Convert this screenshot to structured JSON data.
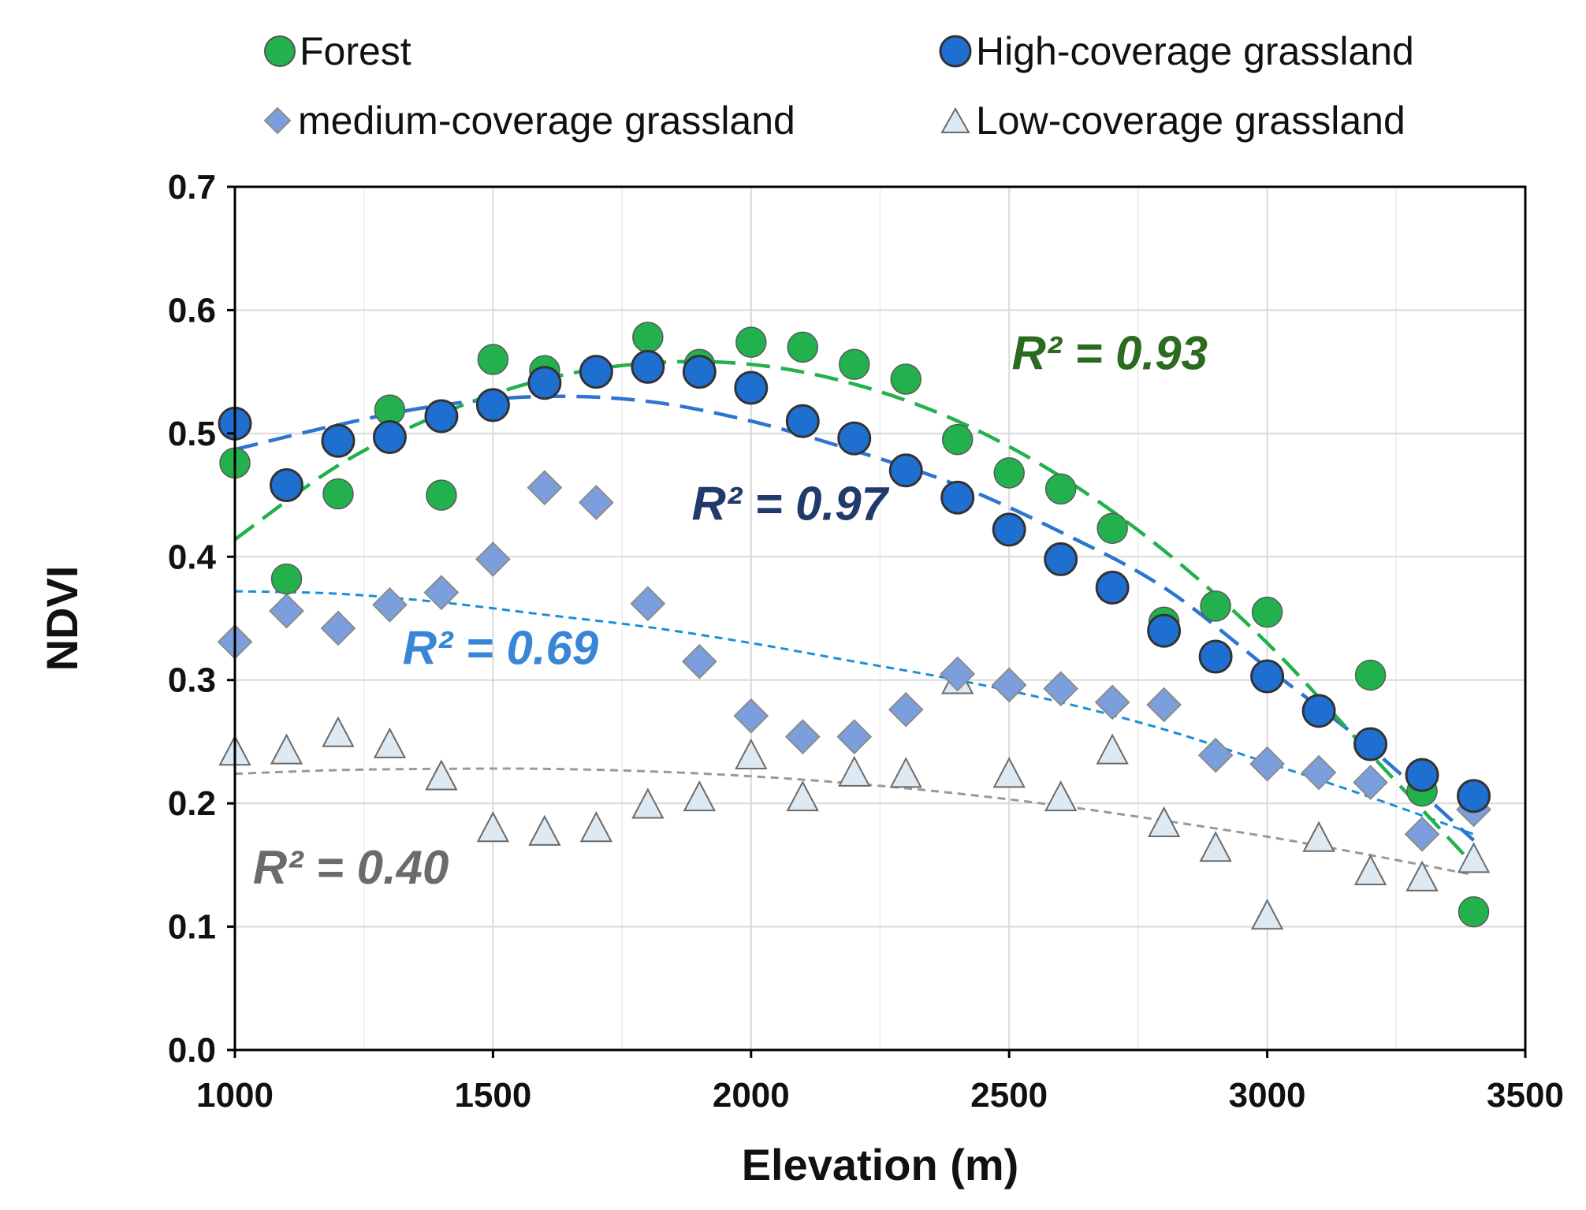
{
  "chart_data": {
    "type": "scatter",
    "xlabel": "Elevation (m)",
    "ylabel": "NDVI",
    "xlim": [
      1000,
      3500
    ],
    "ylim": [
      0.0,
      0.7
    ],
    "xticks": [
      1000,
      1500,
      2000,
      2500,
      3000,
      3500
    ],
    "yticks": [
      0.0,
      0.1,
      0.2,
      0.3,
      0.4,
      0.5,
      0.6,
      0.7
    ],
    "xtick_labels": [
      "1000",
      "1500",
      "2000",
      "2500",
      "3000",
      "3500"
    ],
    "ytick_labels": [
      "0.0",
      "0.1",
      "0.2",
      "0.3",
      "0.4",
      "0.5",
      "0.6",
      "0.7"
    ],
    "grid": true,
    "legend_position": "top",
    "series": [
      {
        "name": "Forest",
        "marker": "circle",
        "color": "#22b14c",
        "x": [
          1000,
          1100,
          1200,
          1300,
          1400,
          1500,
          1600,
          1700,
          1800,
          1900,
          2000,
          2100,
          2200,
          2300,
          2400,
          2500,
          2600,
          2700,
          2800,
          2900,
          3000,
          3100,
          3200,
          3300,
          3400
        ],
        "y": [
          0.476,
          0.382,
          0.451,
          0.519,
          0.45,
          0.56,
          0.551,
          0.55,
          0.578,
          0.556,
          0.574,
          0.57,
          0.556,
          0.544,
          0.495,
          0.468,
          0.455,
          0.423,
          0.347,
          0.36,
          0.355,
          0.275,
          0.304,
          0.21,
          0.112
        ],
        "trend": {
          "r2_label": "R² = 0.93",
          "color": "#22b14c",
          "label_color": "#2b6a1f",
          "points": [
            [
              1000,
              0.414
            ],
            [
              1200,
              0.474
            ],
            [
              1400,
              0.516
            ],
            [
              1600,
              0.544
            ],
            [
              1800,
              0.557
            ],
            [
              2000,
              0.556
            ],
            [
              2200,
              0.54
            ],
            [
              2400,
              0.51
            ],
            [
              2600,
              0.465
            ],
            [
              2800,
              0.405
            ],
            [
              3000,
              0.33
            ],
            [
              3200,
              0.24
            ],
            [
              3400,
              0.15
            ]
          ]
        }
      },
      {
        "name": "High-coverage grassland",
        "marker": "circle",
        "color": "#1f6fd1",
        "x": [
          1000,
          1100,
          1200,
          1300,
          1400,
          1500,
          1600,
          1700,
          1800,
          1900,
          2000,
          2100,
          2200,
          2300,
          2400,
          2500,
          2600,
          2700,
          2800,
          2900,
          3000,
          3100,
          3200,
          3300,
          3400
        ],
        "y": [
          0.508,
          0.458,
          0.494,
          0.497,
          0.514,
          0.523,
          0.541,
          0.55,
          0.554,
          0.55,
          0.537,
          0.51,
          0.496,
          0.47,
          0.448,
          0.422,
          0.398,
          0.375,
          0.34,
          0.319,
          0.303,
          0.275,
          0.248,
          0.223,
          0.206
        ],
        "trend": {
          "r2_label": "R² = 0.97",
          "color": "#2f74d0",
          "label_color": "#1f3a6b",
          "points": [
            [
              1000,
              0.487
            ],
            [
              1200,
              0.507
            ],
            [
              1400,
              0.523
            ],
            [
              1600,
              0.53
            ],
            [
              1800,
              0.526
            ],
            [
              2000,
              0.51
            ],
            [
              2200,
              0.486
            ],
            [
              2400,
              0.458
            ],
            [
              2600,
              0.42
            ],
            [
              2800,
              0.375
            ],
            [
              3000,
              0.31
            ],
            [
              3200,
              0.245
            ],
            [
              3400,
              0.17
            ]
          ]
        }
      },
      {
        "name": "medium-coverage grassland",
        "marker": "diamond",
        "color": "#7b9edc",
        "x": [
          1000,
          1100,
          1200,
          1300,
          1400,
          1500,
          1600,
          1700,
          1800,
          1900,
          2000,
          2100,
          2200,
          2300,
          2400,
          2500,
          2600,
          2700,
          2800,
          2900,
          3000,
          3100,
          3200,
          3300,
          3400
        ],
        "y": [
          0.331,
          0.356,
          0.342,
          0.361,
          0.371,
          0.398,
          0.456,
          0.444,
          0.362,
          0.315,
          0.271,
          0.254,
          0.254,
          0.276,
          0.305,
          0.296,
          0.293,
          0.282,
          0.28,
          0.239,
          0.232,
          0.225,
          0.217,
          0.175,
          0.195
        ],
        "trend": {
          "r2_label": "R² = 0.69",
          "color": "#1a8fd6",
          "label_color": "#3a86d6",
          "points": [
            [
              1000,
              0.372
            ],
            [
              1200,
              0.37
            ],
            [
              1400,
              0.363
            ],
            [
              1600,
              0.353
            ],
            [
              1800,
              0.343
            ],
            [
              2000,
              0.33
            ],
            [
              2200,
              0.315
            ],
            [
              2400,
              0.3
            ],
            [
              2600,
              0.282
            ],
            [
              2800,
              0.26
            ],
            [
              3000,
              0.233
            ],
            [
              3200,
              0.205
            ],
            [
              3400,
              0.175
            ]
          ]
        }
      },
      {
        "name": "Low-coverage grassland",
        "marker": "triangle",
        "color": "#dde9f3",
        "x": [
          1000,
          1100,
          1200,
          1300,
          1400,
          1500,
          1600,
          1700,
          1800,
          1900,
          2000,
          2100,
          2200,
          2300,
          2400,
          2500,
          2600,
          2700,
          2800,
          2900,
          3000,
          3100,
          3200,
          3300,
          3400
        ],
        "y": [
          0.24,
          0.241,
          0.255,
          0.246,
          0.22,
          0.178,
          0.175,
          0.178,
          0.197,
          0.203,
          0.237,
          0.203,
          0.223,
          0.222,
          0.298,
          0.222,
          0.203,
          0.241,
          0.182,
          0.162,
          0.107,
          0.17,
          0.143,
          0.138,
          0.153
        ],
        "trend": {
          "r2_label": "R² = 0.40",
          "color": "#999999",
          "label_color": "#6b6b6b",
          "points": [
            [
              1000,
              0.224
            ],
            [
              1200,
              0.227
            ],
            [
              1400,
              0.228
            ],
            [
              1600,
              0.228
            ],
            [
              1800,
              0.226
            ],
            [
              2000,
              0.222
            ],
            [
              2200,
              0.216
            ],
            [
              2400,
              0.208
            ],
            [
              2600,
              0.198
            ],
            [
              2800,
              0.186
            ],
            [
              3000,
              0.173
            ],
            [
              3200,
              0.158
            ],
            [
              3400,
              0.142
            ]
          ]
        }
      }
    ]
  }
}
